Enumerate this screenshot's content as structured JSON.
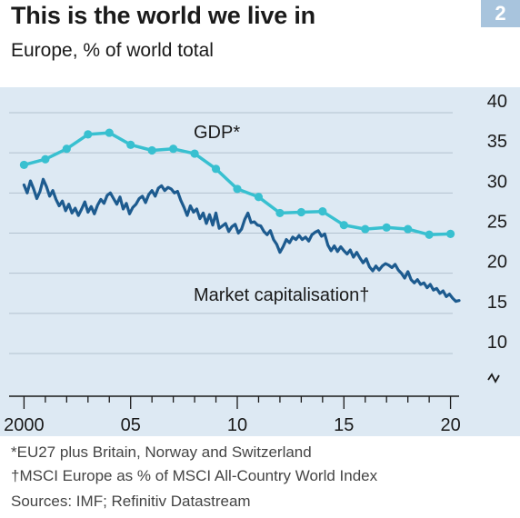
{
  "header": {
    "title": "This is the world we live in",
    "badge": "2",
    "subtitle": "Europe, % of world total"
  },
  "footnotes": {
    "gdp_note": "*EU27 plus Britain, Norway and Switzerland",
    "mcap_note": "†MSCI Europe as % of MSCI All-Country World Index",
    "sources": "Sources: IMF; Refinitiv Datastream"
  },
  "colors": {
    "gdp": "#38c0d0",
    "market_cap": "#1d5b8f",
    "plot_background": "#dde9f3"
  },
  "chart_data": {
    "type": "line",
    "title": "This is the world we live in",
    "subtitle": "Europe, % of world total",
    "xlim": [
      1999.3,
      2020.7
    ],
    "ylim": [
      8,
      40
    ],
    "y_axis_break": true,
    "y_ticks": [
      10,
      15,
      20,
      25,
      30,
      35,
      40
    ],
    "y_tick_labels": [
      "10",
      "15",
      "20",
      "25",
      "30",
      "35",
      "40"
    ],
    "x_ticks": [
      2000,
      2005,
      2010,
      2015,
      2020
    ],
    "x_tick_labels": [
      "2000",
      "05",
      "10",
      "15",
      "20"
    ],
    "grid": "horizontal",
    "series": [
      {
        "name": "GDP*",
        "style": "line-with-markers",
        "x": [
          2000,
          2001,
          2002,
          2003,
          2004,
          2005,
          2006,
          2007,
          2008,
          2009,
          2010,
          2011,
          2012,
          2013,
          2014,
          2015,
          2016,
          2017,
          2018,
          2019,
          2020
        ],
        "values": [
          33.5,
          34.2,
          35.5,
          37.3,
          37.5,
          36.0,
          35.3,
          35.5,
          34.9,
          33.0,
          30.5,
          29.5,
          27.5,
          27.6,
          27.7,
          26.0,
          25.5,
          25.7,
          25.5,
          24.8,
          24.9
        ]
      },
      {
        "name": "Market capitalisation†",
        "style": "line",
        "x": [
          2000,
          2000.15,
          2000.3,
          2000.45,
          2000.6,
          2000.75,
          2000.9,
          2001.05,
          2001.2,
          2001.35,
          2001.5,
          2001.65,
          2001.8,
          2001.95,
          2002.1,
          2002.25,
          2002.4,
          2002.55,
          2002.7,
          2002.85,
          2003,
          2003.15,
          2003.3,
          2003.45,
          2003.6,
          2003.75,
          2003.9,
          2004.05,
          2004.2,
          2004.35,
          2004.5,
          2004.65,
          2004.8,
          2004.95,
          2005.1,
          2005.25,
          2005.4,
          2005.55,
          2005.7,
          2005.85,
          2006,
          2006.15,
          2006.3,
          2006.45,
          2006.6,
          2006.75,
          2006.9,
          2007.05,
          2007.2,
          2007.35,
          2007.5,
          2007.65,
          2007.8,
          2007.95,
          2008.1,
          2008.25,
          2008.4,
          2008.55,
          2008.7,
          2008.85,
          2009,
          2009.15,
          2009.3,
          2009.45,
          2009.6,
          2009.75,
          2009.9,
          2010.05,
          2010.2,
          2010.35,
          2010.5,
          2010.65,
          2010.8,
          2010.95,
          2011.1,
          2011.25,
          2011.4,
          2011.55,
          2011.7,
          2011.85,
          2012,
          2012.15,
          2012.3,
          2012.45,
          2012.6,
          2012.75,
          2012.9,
          2013.05,
          2013.2,
          2013.35,
          2013.5,
          2013.65,
          2013.8,
          2013.95,
          2014.1,
          2014.25,
          2014.4,
          2014.55,
          2014.7,
          2014.85,
          2015,
          2015.15,
          2015.3,
          2015.45,
          2015.6,
          2015.75,
          2015.9,
          2016.05,
          2016.2,
          2016.35,
          2016.5,
          2016.65,
          2016.8,
          2016.95,
          2017.1,
          2017.25,
          2017.4,
          2017.55,
          2017.7,
          2017.85,
          2018,
          2018.15,
          2018.3,
          2018.45,
          2018.6,
          2018.75,
          2018.9,
          2019.05,
          2019.2,
          2019.35,
          2019.5,
          2019.65,
          2019.8,
          2019.95,
          2020.1,
          2020.25,
          2020.4
        ],
        "values": [
          31.0,
          30.0,
          31.5,
          30.5,
          29.3,
          30.2,
          31.7,
          30.8,
          29.6,
          30.3,
          29.2,
          28.4,
          29.0,
          27.8,
          28.6,
          27.5,
          28.1,
          27.2,
          28.0,
          28.9,
          27.6,
          28.3,
          27.4,
          28.5,
          29.2,
          28.7,
          29.7,
          30.0,
          29.3,
          28.6,
          29.5,
          28.0,
          28.7,
          27.4,
          28.2,
          28.6,
          29.3,
          29.6,
          28.8,
          29.8,
          30.3,
          29.6,
          30.6,
          30.9,
          30.3,
          30.7,
          30.5,
          30.0,
          30.2,
          29.1,
          28.2,
          27.2,
          28.4,
          27.6,
          28.0,
          26.8,
          27.5,
          26.2,
          27.3,
          26.0,
          27.5,
          25.6,
          25.9,
          26.2,
          25.2,
          25.8,
          26.1,
          25.0,
          25.5,
          26.7,
          27.5,
          26.3,
          26.4,
          26.0,
          25.9,
          25.2,
          24.8,
          25.3,
          24.2,
          23.6,
          22.6,
          23.3,
          24.2,
          23.8,
          24.5,
          24.2,
          24.7,
          24.2,
          24.5,
          24.0,
          24.8,
          25.1,
          25.3,
          24.6,
          24.9,
          23.5,
          22.8,
          23.4,
          22.7,
          23.3,
          22.8,
          22.4,
          22.9,
          22.0,
          22.6,
          21.9,
          21.3,
          21.8,
          20.8,
          20.3,
          20.9,
          20.4,
          20.9,
          21.2,
          21.0,
          20.7,
          21.1,
          20.4,
          20.0,
          19.4,
          20.2,
          19.2,
          18.8,
          19.2,
          18.6,
          18.8,
          18.2,
          18.6,
          17.9,
          18.1,
          17.5,
          17.8,
          17.1,
          17.4,
          16.9,
          16.5,
          16.6
        ]
      }
    ]
  }
}
